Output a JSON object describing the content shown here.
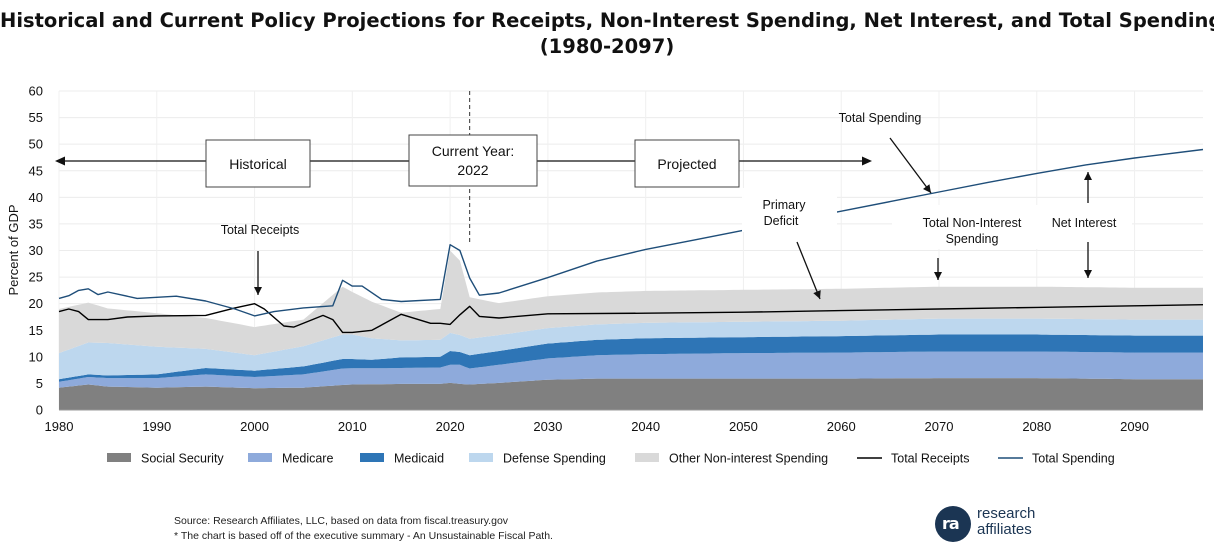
{
  "header": {
    "title_line1": "Historical and Current Policy Projections for Receipts, Non-Interest Spending, Net Interest, and Total Spending",
    "title_line2": "(1980-2097)"
  },
  "footer": {
    "source": "Source: Research Affiliates, LLC, based on data from fiscal.treasury.gov",
    "note": "* The chart is based off of the executive summary - An Unsustainable Fiscal Path."
  },
  "brand": {
    "line1": "research",
    "line2": "affiliates",
    "mark": "ra",
    "icon": "research-affiliates-logo-icon"
  },
  "chart_data": {
    "type": "area",
    "ylabel": "Percent of GDP",
    "xlabel": "",
    "xlim": [
      1980,
      2097
    ],
    "ylim": [
      0,
      60
    ],
    "x_ticks": [
      1980,
      1990,
      2000,
      2010,
      2020,
      2030,
      2040,
      2050,
      2060,
      2070,
      2080,
      2090
    ],
    "y_ticks": [
      0,
      5,
      10,
      15,
      20,
      25,
      30,
      35,
      40,
      45,
      50,
      55,
      60
    ],
    "grid": true,
    "legend_position": "bottom",
    "current_year": 2022,
    "colors": {
      "social_security": "#808080",
      "medicare": "#8eaadb",
      "medicaid": "#2e75b6",
      "defense": "#bdd7ee",
      "other": "#d9d9d9",
      "total_receipts": "#000000",
      "total_spending": "#1f4e79"
    },
    "series": [
      {
        "name": "Social Security",
        "key": "social_security",
        "kind": "stack",
        "points": [
          [
            1980,
            4.2
          ],
          [
            1983,
            4.8
          ],
          [
            1985,
            4.4
          ],
          [
            1990,
            4.2
          ],
          [
            1995,
            4.4
          ],
          [
            2000,
            4.1
          ],
          [
            2005,
            4.2
          ],
          [
            2009,
            4.7
          ],
          [
            2010,
            4.8
          ],
          [
            2015,
            4.9
          ],
          [
            2019,
            4.9
          ],
          [
            2020,
            5.1
          ],
          [
            2021,
            4.9
          ],
          [
            2022,
            4.8
          ],
          [
            2025,
            5.1
          ],
          [
            2030,
            5.7
          ],
          [
            2035,
            5.9
          ],
          [
            2040,
            5.9
          ],
          [
            2050,
            5.9
          ],
          [
            2060,
            5.9
          ],
          [
            2070,
            6.0
          ],
          [
            2080,
            6.0
          ],
          [
            2090,
            5.8
          ],
          [
            2097,
            5.8
          ]
        ]
      },
      {
        "name": "Medicare",
        "key": "medicare",
        "kind": "stack",
        "points": [
          [
            1980,
            1.1
          ],
          [
            1985,
            1.6
          ],
          [
            1990,
            1.8
          ],
          [
            1995,
            2.3
          ],
          [
            2000,
            2.1
          ],
          [
            2005,
            2.5
          ],
          [
            2009,
            3.1
          ],
          [
            2012,
            3.0
          ],
          [
            2015,
            3.0
          ],
          [
            2019,
            3.1
          ],
          [
            2020,
            3.4
          ],
          [
            2021,
            3.6
          ],
          [
            2022,
            3.0
          ],
          [
            2025,
            3.4
          ],
          [
            2030,
            4.0
          ],
          [
            2035,
            4.4
          ],
          [
            2040,
            4.6
          ],
          [
            2050,
            4.8
          ],
          [
            2060,
            4.9
          ],
          [
            2070,
            5.0
          ],
          [
            2080,
            5.0
          ],
          [
            2090,
            5.0
          ],
          [
            2097,
            5.0
          ]
        ]
      },
      {
        "name": "Medicaid",
        "key": "medicaid",
        "kind": "stack",
        "points": [
          [
            1980,
            0.5
          ],
          [
            1985,
            0.5
          ],
          [
            1990,
            0.7
          ],
          [
            1995,
            1.2
          ],
          [
            2000,
            1.2
          ],
          [
            2005,
            1.5
          ],
          [
            2009,
            1.8
          ],
          [
            2012,
            1.6
          ],
          [
            2015,
            2.0
          ],
          [
            2019,
            2.0
          ],
          [
            2020,
            2.6
          ],
          [
            2021,
            2.4
          ],
          [
            2022,
            2.5
          ],
          [
            2025,
            2.6
          ],
          [
            2030,
            2.8
          ],
          [
            2035,
            2.9
          ],
          [
            2040,
            3.0
          ],
          [
            2050,
            3.0
          ],
          [
            2060,
            3.1
          ],
          [
            2070,
            3.2
          ],
          [
            2080,
            3.2
          ],
          [
            2090,
            3.2
          ],
          [
            2097,
            3.2
          ]
        ]
      },
      {
        "name": "Defense Spending",
        "key": "defense",
        "kind": "stack",
        "points": [
          [
            1980,
            4.9
          ],
          [
            1983,
            6.0
          ],
          [
            1985,
            6.1
          ],
          [
            1990,
            5.2
          ],
          [
            1995,
            3.6
          ],
          [
            2000,
            2.9
          ],
          [
            2005,
            3.8
          ],
          [
            2009,
            4.6
          ],
          [
            2010,
            4.6
          ],
          [
            2015,
            3.2
          ],
          [
            2019,
            3.2
          ],
          [
            2020,
            3.4
          ],
          [
            2021,
            3.2
          ],
          [
            2022,
            3.1
          ],
          [
            2025,
            3.0
          ],
          [
            2030,
            2.9
          ],
          [
            2040,
            2.9
          ],
          [
            2050,
            2.9
          ],
          [
            2060,
            2.9
          ],
          [
            2070,
            3.0
          ],
          [
            2080,
            3.0
          ],
          [
            2090,
            3.0
          ],
          [
            2097,
            3.0
          ]
        ]
      },
      {
        "name": "Other Non-interest Spending",
        "key": "other",
        "kind": "stack",
        "points": [
          [
            1980,
            8.3
          ],
          [
            1983,
            7.5
          ],
          [
            1985,
            6.5
          ],
          [
            1990,
            6.3
          ],
          [
            1995,
            5.8
          ],
          [
            2000,
            5.3
          ],
          [
            2005,
            5.0
          ],
          [
            2009,
            9.0
          ],
          [
            2010,
            8.0
          ],
          [
            2015,
            5.2
          ],
          [
            2019,
            5.8
          ],
          [
            2020,
            15.5
          ],
          [
            2021,
            14.0
          ],
          [
            2022,
            7.8
          ],
          [
            2025,
            6.0
          ],
          [
            2030,
            6.0
          ],
          [
            2040,
            6.0
          ],
          [
            2050,
            6.0
          ],
          [
            2060,
            6.0
          ],
          [
            2070,
            6.0
          ],
          [
            2080,
            6.0
          ],
          [
            2090,
            6.0
          ],
          [
            2097,
            6.0
          ]
        ]
      },
      {
        "name": "Total Receipts",
        "key": "total_receipts",
        "kind": "line",
        "points": [
          [
            1980,
            18.5
          ],
          [
            1981,
            19.0
          ],
          [
            1982,
            18.5
          ],
          [
            1983,
            17.0
          ],
          [
            1985,
            17.0
          ],
          [
            1987,
            17.5
          ],
          [
            1990,
            17.7
          ],
          [
            1995,
            17.8
          ],
          [
            1998,
            19.2
          ],
          [
            2000,
            20.0
          ],
          [
            2001,
            19.0
          ],
          [
            2003,
            15.8
          ],
          [
            2004,
            15.6
          ],
          [
            2007,
            17.8
          ],
          [
            2008,
            17.0
          ],
          [
            2009,
            14.6
          ],
          [
            2010,
            14.6
          ],
          [
            2012,
            15.0
          ],
          [
            2015,
            18.0
          ],
          [
            2018,
            16.3
          ],
          [
            2019,
            16.3
          ],
          [
            2020,
            16.1
          ],
          [
            2021,
            17.9
          ],
          [
            2022,
            19.5
          ],
          [
            2023,
            17.6
          ],
          [
            2025,
            17.3
          ],
          [
            2030,
            18.1
          ],
          [
            2040,
            18.2
          ],
          [
            2050,
            18.4
          ],
          [
            2060,
            18.7
          ],
          [
            2070,
            19.0
          ],
          [
            2080,
            19.3
          ],
          [
            2090,
            19.6
          ],
          [
            2097,
            19.8
          ]
        ]
      },
      {
        "name": "Total Spending",
        "key": "total_spending",
        "kind": "line",
        "points": [
          [
            1980,
            21.0
          ],
          [
            1981,
            21.5
          ],
          [
            1982,
            22.5
          ],
          [
            1983,
            22.8
          ],
          [
            1984,
            21.7
          ],
          [
            1985,
            22.2
          ],
          [
            1988,
            21.0
          ],
          [
            1990,
            21.2
          ],
          [
            1992,
            21.4
          ],
          [
            1995,
            20.5
          ],
          [
            1998,
            19.0
          ],
          [
            2000,
            17.7
          ],
          [
            2002,
            18.5
          ],
          [
            2005,
            19.2
          ],
          [
            2008,
            19.6
          ],
          [
            2009,
            24.4
          ],
          [
            2010,
            23.3
          ],
          [
            2011,
            23.3
          ],
          [
            2013,
            20.8
          ],
          [
            2015,
            20.4
          ],
          [
            2019,
            20.8
          ],
          [
            2020,
            31.1
          ],
          [
            2021,
            30.0
          ],
          [
            2022,
            24.8
          ],
          [
            2023,
            21.6
          ],
          [
            2025,
            22.0
          ],
          [
            2030,
            24.9
          ],
          [
            2035,
            28.0
          ],
          [
            2040,
            30.2
          ],
          [
            2045,
            32.0
          ],
          [
            2050,
            33.8
          ],
          [
            2055,
            35.6
          ],
          [
            2060,
            37.4
          ],
          [
            2065,
            39.2
          ],
          [
            2070,
            41.0
          ],
          [
            2075,
            42.8
          ],
          [
            2080,
            44.5
          ],
          [
            2085,
            46.1
          ],
          [
            2090,
            47.4
          ],
          [
            2097,
            49.0
          ]
        ]
      }
    ],
    "legend": [
      {
        "label": "Social Security",
        "key": "social_security",
        "swatch": "box"
      },
      {
        "label": "Medicare",
        "key": "medicare",
        "swatch": "box"
      },
      {
        "label": "Medicaid",
        "key": "medicaid",
        "swatch": "box"
      },
      {
        "label": "Defense Spending",
        "key": "defense",
        "swatch": "box"
      },
      {
        "label": "Other Non-interest Spending",
        "key": "other",
        "swatch": "box"
      },
      {
        "label": "Total Receipts",
        "key": "total_receipts",
        "swatch": "line"
      },
      {
        "label": "Total Spending",
        "key": "total_spending",
        "swatch": "line"
      }
    ],
    "annotations": {
      "historical": "Historical",
      "current_year_line1": "Current Year:",
      "current_year_line2": "2022",
      "projected": "Projected",
      "total_receipts": "Total Receipts",
      "total_spending": "Total Spending",
      "primary_deficit_line1": "Primary",
      "primary_deficit_line2": "Deficit",
      "total_non_interest_line1": "Total Non-Interest",
      "total_non_interest_line2": "Spending",
      "net_interest": "Net Interest"
    }
  }
}
